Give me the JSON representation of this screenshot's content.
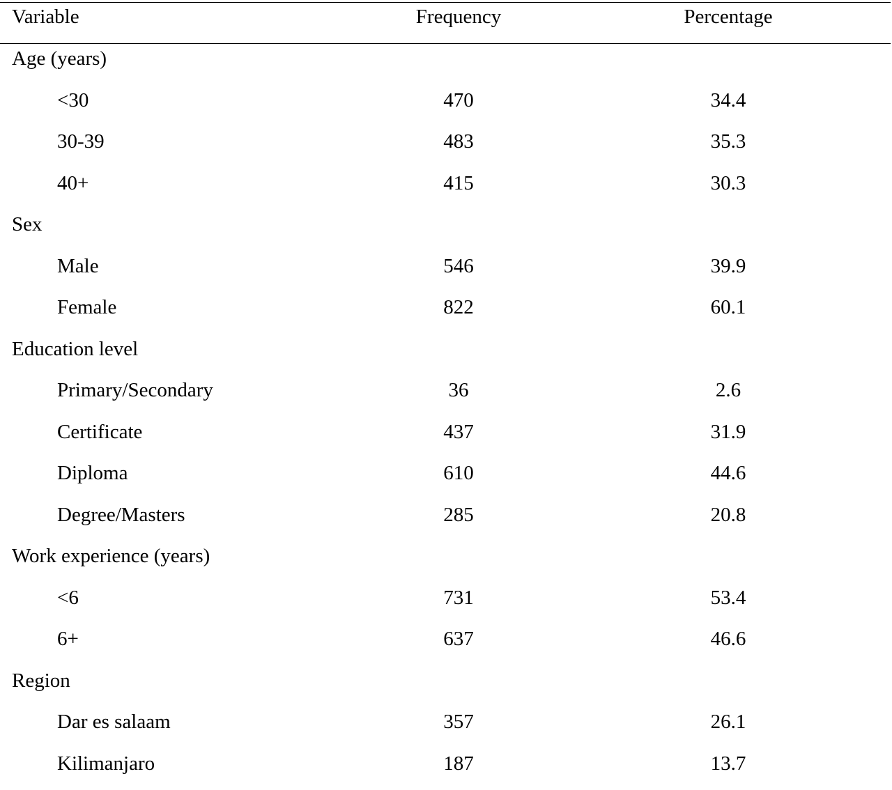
{
  "table": {
    "headers": {
      "variable": "Variable",
      "frequency": "Frequency",
      "percentage": "Percentage"
    },
    "rows": [
      {
        "type": "group",
        "label": "Age (years)",
        "frequency": "",
        "percentage": ""
      },
      {
        "type": "sub",
        "label": "<30",
        "frequency": "470",
        "percentage": "34.4"
      },
      {
        "type": "sub",
        "label": "30-39",
        "frequency": "483",
        "percentage": "35.3"
      },
      {
        "type": "sub",
        "label": "40+",
        "frequency": "415",
        "percentage": "30.3"
      },
      {
        "type": "group",
        "label": "Sex",
        "frequency": "",
        "percentage": ""
      },
      {
        "type": "sub",
        "label": "Male",
        "frequency": "546",
        "percentage": "39.9"
      },
      {
        "type": "sub",
        "label": "Female",
        "frequency": "822",
        "percentage": "60.1"
      },
      {
        "type": "group",
        "label": "Education level",
        "frequency": "",
        "percentage": ""
      },
      {
        "type": "sub",
        "label": "Primary/Secondary",
        "frequency": "36",
        "percentage": "2.6"
      },
      {
        "type": "sub",
        "label": "Certificate",
        "frequency": "437",
        "percentage": "31.9"
      },
      {
        "type": "sub",
        "label": "Diploma",
        "frequency": "610",
        "percentage": "44.6"
      },
      {
        "type": "sub",
        "label": "Degree/Masters",
        "frequency": "285",
        "percentage": "20.8"
      },
      {
        "type": "group",
        "label": "Work experience (years)",
        "frequency": "",
        "percentage": ""
      },
      {
        "type": "sub",
        "label": "<6",
        "frequency": "731",
        "percentage": "53.4"
      },
      {
        "type": "sub",
        "label": "6+",
        "frequency": "637",
        "percentage": "46.6"
      },
      {
        "type": "group",
        "label": "Region",
        "frequency": "",
        "percentage": ""
      },
      {
        "type": "sub",
        "label": "Dar es salaam",
        "frequency": "357",
        "percentage": "26.1"
      },
      {
        "type": "sub",
        "label": "Kilimanjaro",
        "frequency": "187",
        "percentage": "13.7"
      }
    ]
  }
}
